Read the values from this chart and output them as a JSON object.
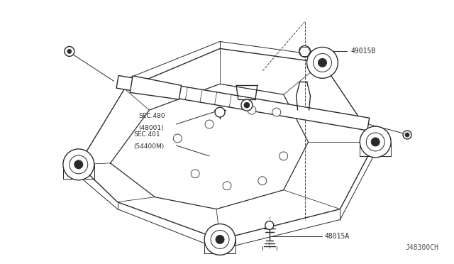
{
  "bg_color": "#ffffff",
  "line_color": "#2a2a2a",
  "diagram_code": "J48300CH",
  "figsize": [
    6.4,
    3.72
  ],
  "dpi": 100,
  "label_49015B": "49015B",
  "label_48015A": "48015A",
  "label_sec480": "SEC.480\n(48001)",
  "label_sec401": "SEC.401\n(54400M)"
}
